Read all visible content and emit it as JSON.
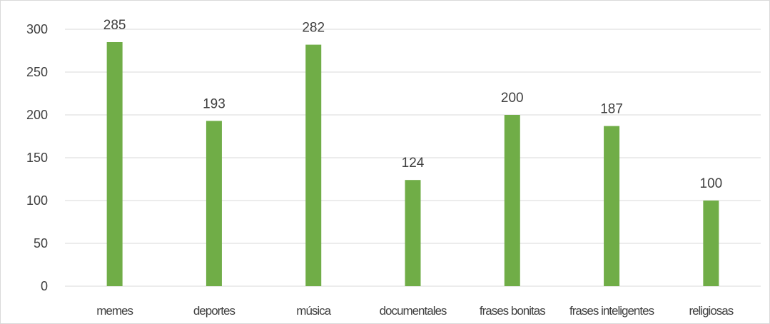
{
  "chart_data": {
    "type": "bar",
    "categories": [
      "memes",
      "deportes",
      "música",
      "documentales",
      "frases bonitas",
      "frases inteligentes",
      "religiosas"
    ],
    "values": [
      285,
      193,
      282,
      124,
      200,
      187,
      100
    ],
    "data_labels": [
      "285",
      "193",
      "282",
      "124",
      "200",
      "187",
      "100"
    ],
    "title": "",
    "xlabel": "",
    "ylabel": "",
    "ylim": [
      0,
      300
    ],
    "yticks": [
      0,
      50,
      100,
      150,
      200,
      250,
      300
    ],
    "ytick_labels": [
      "0",
      "50",
      "100",
      "150",
      "200",
      "250",
      "300"
    ],
    "grid": true,
    "legend": "none",
    "bar_color": "#70ad47"
  }
}
